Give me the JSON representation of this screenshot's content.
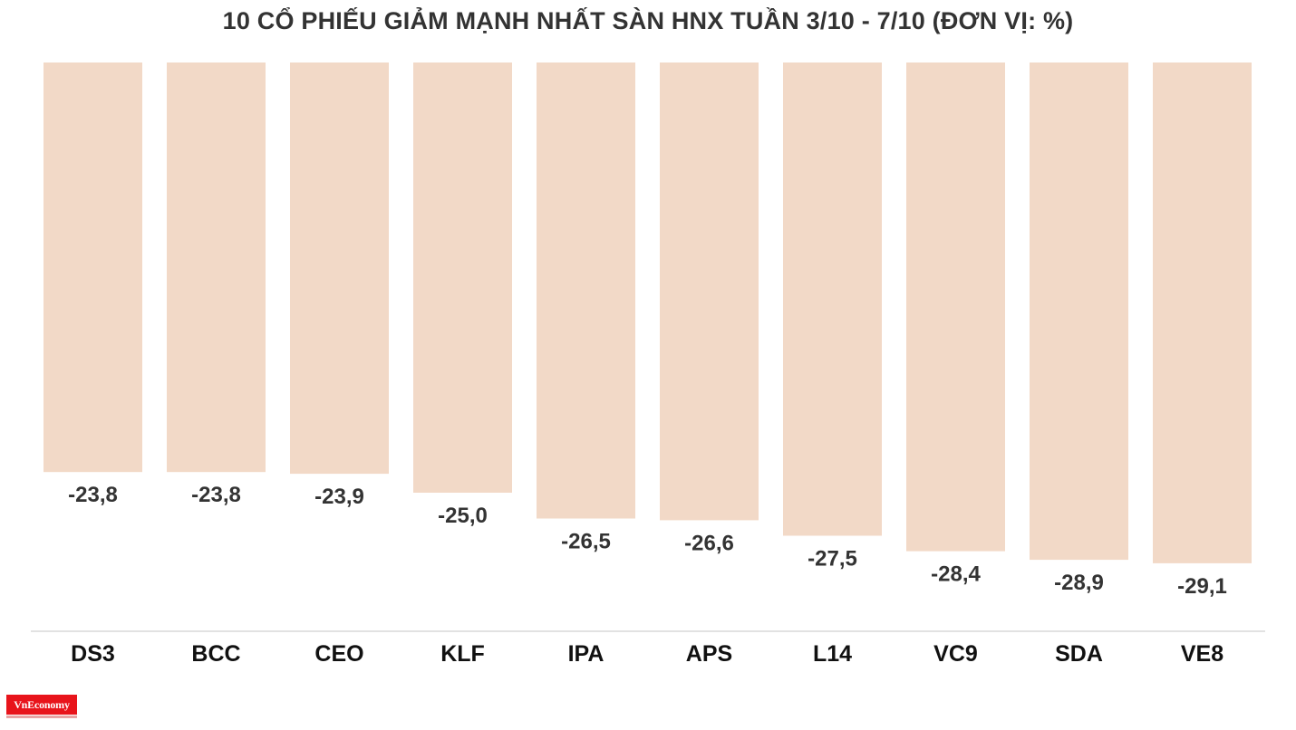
{
  "title": "10 CỔ PHIẾU GIẢM MẠNH NHẤT SÀN HNX TUẦN 3/10 - 7/10 (ĐƠN VỊ: %)",
  "logo_text": "VnEconomy",
  "colors": {
    "bar": "#f2d9c7",
    "text": "#333333",
    "axis": "#d9d9d9",
    "logo": "#e8141b"
  },
  "chart_data": {
    "type": "bar",
    "title": "10 CỔ PHIẾU GIẢM MẠNH NHẤT SÀN HNX TUẦN 3/10 - 7/10 (ĐƠN VỊ: %)",
    "categories": [
      "DS3",
      "BCC",
      "CEO",
      "KLF",
      "IPA",
      "APS",
      "L14",
      "VC9",
      "SDA",
      "VE8"
    ],
    "values": [
      -23.8,
      -23.8,
      -23.9,
      -25.0,
      -26.5,
      -26.6,
      -27.5,
      -28.4,
      -28.9,
      -29.1
    ],
    "value_labels": [
      "-23,8",
      "-23,8",
      "-23,9",
      "-25,0",
      "-26,5",
      "-26,6",
      "-27,5",
      "-28,4",
      "-28,9",
      "-29,1"
    ],
    "xlabel": "",
    "ylabel": "",
    "orientation": "vertical-negative-down",
    "grid": false,
    "legend": "none"
  }
}
